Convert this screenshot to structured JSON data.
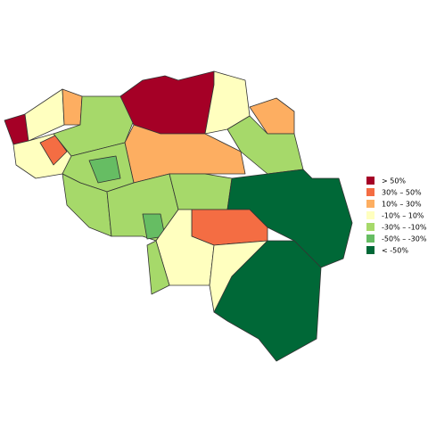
{
  "legend": {
    "items": [
      {
        "label": ">  50%",
        "color": "#a50026"
      },
      {
        "label": "30%  –  50%",
        "color": "#f46d43"
      },
      {
        "label": "10%  –  30%",
        "color": "#fdae61"
      },
      {
        "label": "-10%  –  10%",
        "color": "#ffffbf"
      },
      {
        "label": "-30%  –  -10%",
        "color": "#a6d96a"
      },
      {
        "label": "-50%  –  -30%",
        "color": "#66bd63"
      },
      {
        "label": "< -50%",
        "color": "#006837"
      }
    ]
  }
}
